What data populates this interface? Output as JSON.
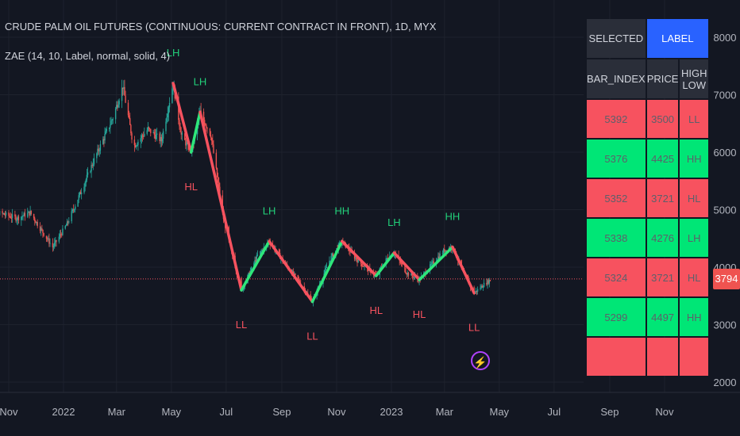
{
  "header": {
    "title": "CRUDE PALM OIL FUTURES (CONTINUOUS: CURRENT CONTRACT IN FRONT), 1D, MYX",
    "indicator": "ZAE (14, 10, Label, normal, solid, 4)"
  },
  "colors": {
    "background": "#131722",
    "up": "#26a69a",
    "down": "#ef5350",
    "zig_up": "#2ee67a",
    "zig_down": "#f7525f",
    "label_green": "#22d17a",
    "label_red": "#f7525f",
    "cell_green": "#00e676",
    "cell_red": "#f7525f",
    "header_blue": "#2962ff",
    "price_line": "#f7525f"
  },
  "last_price_badge": "3794",
  "signal_icon": "lightning-icon",
  "panel": {
    "selected_label": "SELECTED",
    "mode_label": "LABEL",
    "columns": [
      "BAR_INDEX",
      "PRICE",
      "HIGH LOW"
    ],
    "rows": [
      {
        "bar_index": "5392",
        "price": "3500",
        "high_low": "LL",
        "color": "red"
      },
      {
        "bar_index": "5376",
        "price": "4425",
        "high_low": "HH",
        "color": "green"
      },
      {
        "bar_index": "5352",
        "price": "3721",
        "high_low": "HL",
        "color": "red"
      },
      {
        "bar_index": "5338",
        "price": "4276",
        "high_low": "LH",
        "color": "green"
      },
      {
        "bar_index": "5324",
        "price": "3721",
        "high_low": "HL",
        "color": "red"
      },
      {
        "bar_index": "5299",
        "price": "4497",
        "high_low": "HH",
        "color": "green"
      }
    ]
  },
  "chart_data": {
    "type": "candlestick",
    "x_ticks": [
      "Nov",
      "2022",
      "Mar",
      "May",
      "Jul",
      "Sep",
      "Nov",
      "2023",
      "Mar",
      "May",
      "Jul",
      "Sep",
      "Nov"
    ],
    "x_tick_dates": [
      "2021-11-01",
      "2022-01-01",
      "2022-03-01",
      "2022-05-01",
      "2022-07-01",
      "2022-09-01",
      "2022-11-01",
      "2023-01-01",
      "2023-03-01",
      "2023-05-01",
      "2023-07-01",
      "2023-09-01",
      "2023-11-01"
    ],
    "y_ticks": [
      2000,
      3000,
      4000,
      5000,
      6000,
      7000,
      8000
    ],
    "ylim": [
      1900,
      8500
    ],
    "last_price": 3794,
    "price_path": [
      [
        "2021-10-01",
        4900
      ],
      [
        "2021-10-20",
        4950
      ],
      [
        "2021-11-10",
        4850
      ],
      [
        "2021-11-25",
        4950
      ],
      [
        "2021-12-05",
        4700
      ],
      [
        "2021-12-20",
        4350
      ],
      [
        "2022-01-05",
        4750
      ],
      [
        "2022-01-20",
        5300
      ],
      [
        "2022-02-05",
        5900
      ],
      [
        "2022-02-25",
        6600
      ],
      [
        "2022-03-08",
        7150
      ],
      [
        "2022-03-20",
        6100
      ],
      [
        "2022-04-05",
        6400
      ],
      [
        "2022-04-20",
        6200
      ],
      [
        "2022-05-03",
        7200
      ],
      [
        "2022-05-12",
        6300
      ],
      [
        "2022-05-23",
        6000
      ],
      [
        "2022-06-02",
        6700
      ],
      [
        "2022-06-14",
        6300
      ],
      [
        "2022-06-28",
        4850
      ],
      [
        "2022-07-08",
        4200
      ],
      [
        "2022-07-18",
        3600
      ],
      [
        "2022-08-05",
        4200
      ],
      [
        "2022-08-18",
        4450
      ],
      [
        "2022-09-05",
        4050
      ],
      [
        "2022-09-20",
        3750
      ],
      [
        "2022-10-05",
        3400
      ],
      [
        "2022-10-25",
        4150
      ],
      [
        "2022-11-07",
        4450
      ],
      [
        "2022-11-25",
        4100
      ],
      [
        "2022-12-15",
        3850
      ],
      [
        "2022-12-27",
        4150
      ],
      [
        "2023-01-04",
        4250
      ],
      [
        "2023-01-18",
        3900
      ],
      [
        "2023-02-01",
        3780
      ],
      [
        "2023-02-15",
        4050
      ],
      [
        "2023-03-01",
        4300
      ],
      [
        "2023-03-10",
        4350
      ],
      [
        "2023-03-22",
        3900
      ],
      [
        "2023-04-03",
        3550
      ],
      [
        "2023-04-14",
        3700
      ],
      [
        "2023-04-23",
        3794
      ]
    ],
    "zigzag": [
      [
        "2022-05-03",
        7200
      ],
      [
        "2022-05-23",
        6000
      ],
      [
        "2022-06-02",
        6700
      ],
      [
        "2022-07-18",
        3600
      ],
      [
        "2022-08-18",
        4450
      ],
      [
        "2022-10-05",
        3400
      ],
      [
        "2022-11-07",
        4450
      ],
      [
        "2022-12-15",
        3850
      ],
      [
        "2023-01-04",
        4250
      ],
      [
        "2023-02-01",
        3780
      ],
      [
        "2023-03-10",
        4350
      ],
      [
        "2023-04-03",
        3550
      ]
    ],
    "labels": [
      {
        "text": "LH",
        "date": "2022-05-03",
        "price": 7200,
        "type": "high"
      },
      {
        "text": "LH",
        "date": "2022-06-02",
        "price": 6700,
        "type": "high"
      },
      {
        "text": "HL",
        "date": "2022-05-23",
        "price": 6000,
        "type": "low"
      },
      {
        "text": "LH",
        "date": "2022-08-18",
        "price": 4450,
        "type": "high"
      },
      {
        "text": "LL",
        "date": "2022-07-18",
        "price": 3600,
        "type": "low"
      },
      {
        "text": "HH",
        "date": "2022-11-07",
        "price": 4450,
        "type": "high"
      },
      {
        "text": "LL",
        "date": "2022-10-05",
        "price": 3400,
        "type": "low"
      },
      {
        "text": "LH",
        "date": "2023-01-04",
        "price": 4250,
        "type": "high"
      },
      {
        "text": "HL",
        "date": "2022-12-15",
        "price": 3850,
        "type": "low"
      },
      {
        "text": "HL",
        "date": "2023-02-01",
        "price": 3780,
        "type": "low"
      },
      {
        "text": "HH",
        "date": "2023-03-10",
        "price": 4350,
        "type": "high"
      },
      {
        "text": "LL",
        "date": "2023-04-03",
        "price": 3550,
        "type": "low"
      }
    ]
  }
}
